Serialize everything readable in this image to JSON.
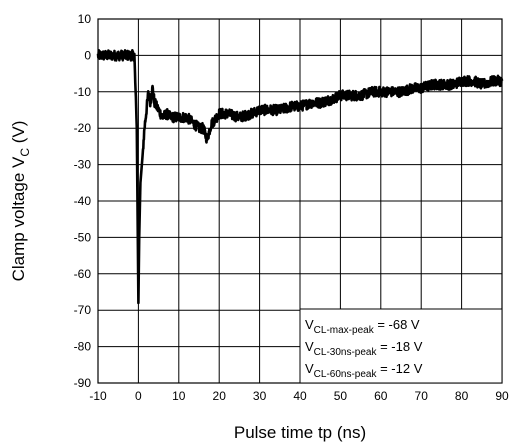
{
  "chart_data": {
    "type": "line",
    "title": "",
    "xlabel": "Pulse time  tp  (ns)",
    "ylabel": {
      "main": "Clamp voltage  V",
      "subscript": "C",
      "unit": "  (V)"
    },
    "xlim": [
      -10,
      90
    ],
    "ylim": [
      -90,
      10
    ],
    "x_ticks": [
      -10,
      0,
      10,
      20,
      30,
      40,
      50,
      60,
      70,
      80,
      90
    ],
    "y_ticks": [
      10,
      0,
      -10,
      -20,
      -30,
      -40,
      -50,
      -60,
      -70,
      -80,
      -90
    ],
    "grid": true,
    "series": [
      {
        "color": "#000000",
        "x": [
          -10,
          -6,
          -3,
          -1,
          -0.4,
          0,
          0.2,
          0.5,
          1,
          1.5,
          2,
          2.5,
          3,
          3.5,
          4,
          5,
          6,
          7,
          8,
          9,
          10,
          12,
          14,
          15,
          16,
          17,
          18,
          20,
          22,
          25,
          28,
          30,
          32,
          35,
          38,
          40,
          43,
          45,
          48,
          50,
          53,
          55,
          58,
          60,
          63,
          65,
          68,
          70,
          73,
          75,
          78,
          80,
          83,
          85,
          88,
          90
        ],
        "y": [
          0,
          0,
          0,
          0,
          -20,
          -68,
          -50,
          -35,
          -28,
          -20,
          -15,
          -10,
          -13,
          -9,
          -13,
          -15,
          -17,
          -16,
          -17,
          -17,
          -17,
          -17,
          -19,
          -20,
          -20,
          -23,
          -19,
          -16,
          -16,
          -17,
          -16,
          -15,
          -15,
          -15,
          -14,
          -14,
          -13,
          -13,
          -12,
          -11,
          -11,
          -11,
          -10,
          -10,
          -10,
          -10,
          -9,
          -9,
          -8,
          -8,
          -8,
          -7,
          -7,
          -8,
          -7,
          -7
        ],
        "noise": 1.4
      }
    ],
    "annotations": [
      {
        "main": "V",
        "sub": "CL-max-peak",
        "rest": " = -68 V"
      },
      {
        "main": "V",
        "sub": "CL-30ns-peak",
        "rest": " = -18 V"
      },
      {
        "main": "V",
        "sub": "CL-60ns-peak",
        "rest": " = -12 V"
      }
    ]
  }
}
